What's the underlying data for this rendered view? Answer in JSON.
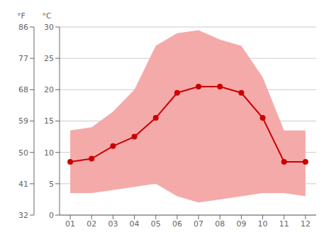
{
  "chart_data": {
    "type": "line",
    "x": [
      1,
      2,
      3,
      4,
      5,
      6,
      7,
      8,
      9,
      10,
      11,
      12
    ],
    "xlim": [
      0.5,
      12.5
    ],
    "xticks": [
      {
        "value": 1,
        "label": "01"
      },
      {
        "value": 2,
        "label": "02"
      },
      {
        "value": 3,
        "label": "03"
      },
      {
        "value": 4,
        "label": "04"
      },
      {
        "value": 5,
        "label": "05"
      },
      {
        "value": 6,
        "label": "06"
      },
      {
        "value": 7,
        "label": "07"
      },
      {
        "value": 8,
        "label": "08"
      },
      {
        "value": 9,
        "label": "09"
      },
      {
        "value": 10,
        "label": "10"
      },
      {
        "value": 11,
        "label": "11"
      },
      {
        "value": 12,
        "label": "12"
      }
    ],
    "ylabel": "°C",
    "ylim": [
      0,
      30
    ],
    "yticks": [
      0,
      5,
      10,
      15,
      20,
      25,
      30
    ],
    "y2label": "°F",
    "y2lim": [
      32,
      86
    ],
    "y2ticks": [
      32,
      41,
      50,
      59,
      68,
      77,
      86
    ],
    "grid": true,
    "series": [
      {
        "type": "band",
        "color": "#f5aaaa",
        "lower": [
          3.5,
          3.5,
          4.0,
          4.5,
          5.0,
          3.0,
          2.0,
          2.5,
          3.0,
          3.5,
          3.5,
          3.0
        ],
        "upper": [
          13.5,
          14.0,
          16.5,
          20.0,
          27.0,
          29.0,
          29.5,
          28.0,
          27.0,
          22.0,
          13.5,
          13.5
        ]
      },
      {
        "type": "line",
        "color": "#cc0000",
        "marker": "circle",
        "values": [
          8.5,
          9.0,
          11.0,
          12.5,
          15.5,
          19.5,
          20.5,
          20.5,
          19.5,
          15.5,
          8.5,
          8.5
        ]
      }
    ]
  }
}
